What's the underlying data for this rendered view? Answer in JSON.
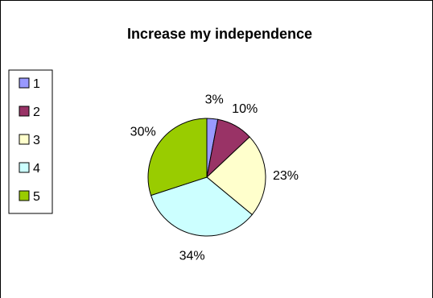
{
  "chart_data": {
    "type": "pie",
    "title": "Increase my independence",
    "categories": [
      "1",
      "2",
      "3",
      "4",
      "5"
    ],
    "values": [
      3,
      10,
      23,
      34,
      30
    ],
    "labels": [
      "3%",
      "10%",
      "23%",
      "34%",
      "30%"
    ],
    "colors": [
      "#9999ff",
      "#993366",
      "#ffffcc",
      "#ccffff",
      "#99cc00"
    ],
    "legend_position": "left"
  }
}
